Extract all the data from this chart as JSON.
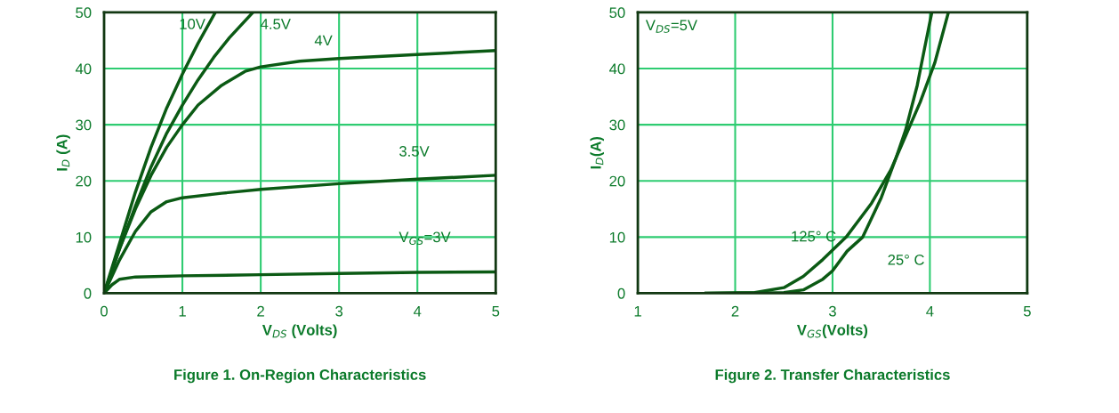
{
  "chart_data": [
    {
      "type": "line",
      "title": "Figure 1. On-Region Characteristics",
      "xlabel": "V$_{DS}$ (Volts)",
      "ylabel": "I$_{D}$ (A)",
      "xlim": [
        0,
        5
      ],
      "ylim": [
        0,
        50
      ],
      "xticks": [
        0,
        1,
        2,
        3,
        4,
        5
      ],
      "yticks": [
        0,
        10,
        20,
        30,
        40,
        50
      ],
      "grid": true,
      "legend": false,
      "marker": "none",
      "line_style": "solid",
      "series": [
        {
          "name": "10V",
          "color": "#0b5a14",
          "x": [
            0,
            0.2,
            0.4,
            0.6,
            0.8,
            1.0,
            1.2,
            1.42
          ],
          "values": [
            0,
            9,
            18,
            26,
            33,
            39,
            44.5,
            50
          ]
        },
        {
          "name": "4.5V",
          "color": "#0b5a14",
          "x": [
            0,
            0.2,
            0.4,
            0.6,
            0.8,
            1.0,
            1.2,
            1.4,
            1.6,
            1.9
          ],
          "values": [
            0,
            8,
            15.5,
            22.5,
            28.5,
            33.5,
            38,
            42,
            45.5,
            50
          ]
        },
        {
          "name": "4V",
          "color": "#0b5a14",
          "x": [
            0,
            0.2,
            0.4,
            0.6,
            0.8,
            1.0,
            1.2,
            1.5,
            1.8,
            2.0,
            2.5,
            3.0,
            4.0,
            5.0
          ],
          "values": [
            0,
            8,
            15,
            21,
            26,
            30,
            33.5,
            37,
            39.5,
            40.3,
            41.3,
            41.8,
            42.5,
            43.2
          ]
        },
        {
          "name": "3.5V",
          "color": "#0b5a14",
          "x": [
            0,
            0.2,
            0.4,
            0.6,
            0.8,
            1.0,
            1.5,
            2.0,
            3.0,
            4.0,
            5.0
          ],
          "values": [
            0,
            6,
            11,
            14.5,
            16.3,
            17,
            17.8,
            18.5,
            19.5,
            20.3,
            21
          ]
        },
        {
          "name": "V$_{GS}$=3V",
          "color": "#0b5a14",
          "x": [
            0,
            0.1,
            0.2,
            0.4,
            1.0,
            2.0,
            3.0,
            4.0,
            5.0
          ],
          "values": [
            0,
            1.5,
            2.5,
            2.9,
            3.1,
            3.3,
            3.5,
            3.7,
            3.8
          ]
        }
      ]
    },
    {
      "type": "line",
      "title": "Figure 2. Transfer Characteristics",
      "xlabel": "V$_{GS}$(Volts)",
      "ylabel": "I$_{D}$(A)",
      "xlim": [
        1,
        5
      ],
      "ylim": [
        0,
        50
      ],
      "xticks": [
        1,
        2,
        3,
        4,
        5
      ],
      "yticks": [
        0,
        10,
        20,
        30,
        40,
        50
      ],
      "grid": true,
      "legend": false,
      "marker": "none",
      "line_style": "solid",
      "series": [
        {
          "name": "125° C",
          "color": "#0b5a14",
          "x": [
            1.7,
            2.2,
            2.5,
            2.7,
            2.9,
            3.14,
            3.4,
            3.6,
            3.75,
            3.9,
            4.05,
            4.19
          ],
          "values": [
            0,
            0.1,
            1,
            3,
            6,
            10,
            16,
            22,
            28,
            34,
            41,
            50
          ]
        },
        {
          "name": "25° C",
          "color": "#0b5a14",
          "x": [
            1.7,
            2.5,
            2.7,
            2.9,
            3.0,
            3.15,
            3.31,
            3.5,
            3.65,
            3.75,
            3.87,
            3.95,
            4.02
          ],
          "values": [
            0,
            0.1,
            0.6,
            2.5,
            4,
            7.5,
            10,
            17,
            24,
            29,
            37,
            44,
            50
          ]
        }
      ],
      "annotations": [
        "V$_{DS}$=5V"
      ]
    }
  ]
}
